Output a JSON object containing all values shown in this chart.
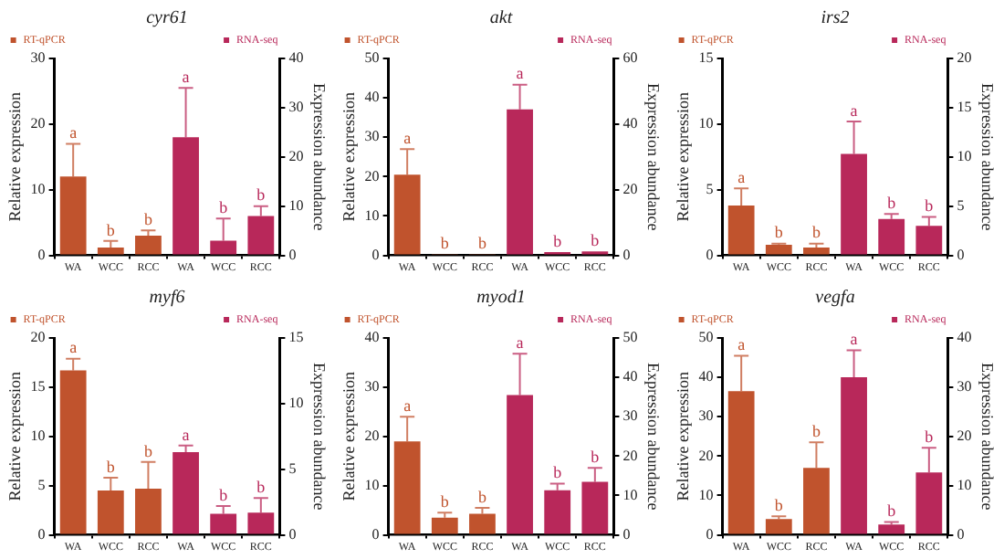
{
  "chart_data": [
    {
      "type": "bar",
      "title": "cyr61",
      "categories": [
        "WA",
        "WCC",
        "RCC",
        "WA",
        "WCC",
        "RCC"
      ],
      "ylabel": "Relative expression",
      "y2label": "Expression abundance",
      "ylim": [
        0,
        30
      ],
      "yticks": [
        0,
        10,
        20,
        30
      ],
      "y2lim": [
        0,
        40
      ],
      "y2ticks": [
        0,
        10,
        20,
        30,
        40
      ],
      "legend": "top",
      "series": [
        {
          "name": "RT-qPCR",
          "color": "#c0532d",
          "values": [
            12,
            1.2,
            3,
            null,
            null,
            null
          ],
          "errors": [
            [
              12,
              17
            ],
            [
              1.2,
              2.2
            ],
            [
              3,
              3.8
            ],
            null,
            null,
            null
          ],
          "value_labels": [
            "a",
            "b",
            "b",
            null,
            null,
            null
          ]
        },
        {
          "name": "RNA-seq",
          "color": "#b8285a",
          "axis": "y2",
          "values": [
            null,
            null,
            null,
            24,
            3,
            8
          ],
          "errors": [
            null,
            null,
            null,
            [
              24,
              34
            ],
            [
              3,
              7.5
            ],
            [
              8,
              10
            ]
          ],
          "value_labels": [
            null,
            null,
            null,
            "a",
            "b",
            "b"
          ]
        }
      ]
    },
    {
      "type": "bar",
      "title": "akt",
      "categories": [
        "WA",
        "WCC",
        "RCC",
        "WA",
        "WCC",
        "RCC"
      ],
      "ylabel": "Relative expression",
      "y2label": "Expression abundance",
      "ylim": [
        0,
        50
      ],
      "yticks": [
        0,
        10,
        20,
        30,
        40,
        50
      ],
      "y2lim": [
        0,
        60
      ],
      "y2ticks": [
        0,
        20,
        40,
        60
      ],
      "legend": "top",
      "series": [
        {
          "name": "RT-qPCR",
          "color": "#c0532d",
          "values": [
            20.5,
            0.2,
            0.3,
            null,
            null,
            null
          ],
          "errors": [
            [
              20.5,
              27
            ],
            null,
            null,
            null,
            null,
            null
          ],
          "value_labels": [
            "a",
            "b",
            "b",
            null,
            null,
            null
          ]
        },
        {
          "name": "RNA-seq",
          "color": "#b8285a",
          "axis": "y2",
          "values": [
            null,
            null,
            null,
            44.5,
            1,
            1.2
          ],
          "errors": [
            null,
            null,
            null,
            [
              44.5,
              52
            ],
            null,
            null
          ],
          "value_labels": [
            null,
            null,
            null,
            "a",
            "b",
            "b"
          ]
        }
      ]
    },
    {
      "type": "bar",
      "title": "irs2",
      "categories": [
        "WA",
        "WCC",
        "RCC",
        "WA",
        "WCC",
        "RCC"
      ],
      "ylabel": "Relative expression",
      "y2label": "Expression abundance",
      "ylim": [
        0,
        15
      ],
      "yticks": [
        0,
        5,
        10,
        15
      ],
      "y2lim": [
        0,
        20
      ],
      "y2ticks": [
        0,
        5,
        10,
        15,
        20
      ],
      "legend": "top",
      "series": [
        {
          "name": "RT-qPCR",
          "color": "#c0532d",
          "values": [
            3.8,
            0.8,
            0.6,
            null,
            null,
            null
          ],
          "errors": [
            [
              3.8,
              5.1
            ],
            [
              0.8,
              0.9
            ],
            [
              0.6,
              0.9
            ],
            null,
            null,
            null
          ],
          "value_labels": [
            "a",
            "b",
            "b",
            null,
            null,
            null
          ]
        },
        {
          "name": "RNA-seq",
          "color": "#b8285a",
          "axis": "y2",
          "values": [
            null,
            null,
            null,
            10.3,
            3.7,
            3
          ],
          "errors": [
            null,
            null,
            null,
            [
              10.3,
              13.6
            ],
            [
              3.7,
              4.2
            ],
            [
              3,
              3.9
            ]
          ],
          "value_labels": [
            null,
            null,
            null,
            "a",
            "b",
            "b"
          ]
        }
      ]
    },
    {
      "type": "bar",
      "title": "myf6",
      "categories": [
        "WA",
        "WCC",
        "RCC",
        "WA",
        "WCC",
        "RCC"
      ],
      "ylabel": "Relative expression",
      "y2label": "Expression abundance",
      "ylim": [
        0,
        20
      ],
      "yticks": [
        0,
        5,
        10,
        15,
        20
      ],
      "y2lim": [
        0,
        15
      ],
      "y2ticks": [
        0,
        5,
        10,
        15
      ],
      "legend": "top",
      "series": [
        {
          "name": "RT-qPCR",
          "color": "#c0532d",
          "values": [
            16.7,
            4.5,
            4.7,
            null,
            null,
            null
          ],
          "errors": [
            [
              16.7,
              17.9
            ],
            [
              4.5,
              5.8
            ],
            [
              4.7,
              7.4
            ],
            null,
            null,
            null
          ],
          "value_labels": [
            "a",
            "b",
            "b",
            null,
            null,
            null
          ]
        },
        {
          "name": "RNA-seq",
          "color": "#b8285a",
          "axis": "y2",
          "values": [
            null,
            null,
            null,
            6.3,
            1.6,
            1.7
          ],
          "errors": [
            null,
            null,
            null,
            [
              6.3,
              6.8
            ],
            [
              1.6,
              2.2
            ],
            [
              1.7,
              2.8
            ]
          ],
          "value_labels": [
            null,
            null,
            null,
            "a",
            "b",
            "b"
          ]
        }
      ]
    },
    {
      "type": "bar",
      "title": "myod1",
      "categories": [
        "WA",
        "WCC",
        "RCC",
        "WA",
        "WCC",
        "RCC"
      ],
      "ylabel": "Relative expression",
      "y2label": "Expression abundance",
      "ylim": [
        0,
        40
      ],
      "yticks": [
        0,
        10,
        20,
        30,
        40
      ],
      "y2lim": [
        0,
        50
      ],
      "y2ticks": [
        0,
        10,
        20,
        30,
        40,
        50
      ],
      "legend": "top",
      "series": [
        {
          "name": "RT-qPCR",
          "color": "#c0532d",
          "values": [
            19,
            3.5,
            4.3,
            null,
            null,
            null
          ],
          "errors": [
            [
              19,
              24
            ],
            [
              3.5,
              4.5
            ],
            [
              4.3,
              5.5
            ],
            null,
            null,
            null
          ],
          "value_labels": [
            "a",
            "b",
            "b",
            null,
            null,
            null
          ]
        },
        {
          "name": "RNA-seq",
          "color": "#b8285a",
          "axis": "y2",
          "values": [
            null,
            null,
            null,
            35.5,
            11.3,
            13.5
          ],
          "errors": [
            null,
            null,
            null,
            [
              35.5,
              46
            ],
            [
              11.3,
              13
            ],
            [
              13.5,
              17
            ]
          ],
          "value_labels": [
            null,
            null,
            null,
            "a",
            "b",
            "b"
          ]
        }
      ]
    },
    {
      "type": "bar",
      "title": "vegfa",
      "categories": [
        "WA",
        "WCC",
        "RCC",
        "WA",
        "WCC",
        "RCC"
      ],
      "ylabel": "Relative expression",
      "y2label": "Expression abundance",
      "ylim": [
        0,
        50
      ],
      "yticks": [
        0,
        10,
        20,
        30,
        40,
        50
      ],
      "y2lim": [
        0,
        40
      ],
      "y2ticks": [
        0,
        10,
        20,
        30,
        40
      ],
      "legend": "top",
      "series": [
        {
          "name": "RT-qPCR",
          "color": "#c0532d",
          "values": [
            36.5,
            4,
            17,
            null,
            null,
            null
          ],
          "errors": [
            [
              36.5,
              45.5
            ],
            [
              4,
              4.7
            ],
            [
              17,
              23.5
            ],
            null,
            null,
            null
          ],
          "value_labels": [
            "a",
            "b",
            "b",
            null,
            null,
            null
          ]
        },
        {
          "name": "RNA-seq",
          "color": "#b8285a",
          "axis": "y2",
          "values": [
            null,
            null,
            null,
            32,
            2.1,
            12.7
          ],
          "errors": [
            null,
            null,
            null,
            [
              32,
              37.5
            ],
            [
              2.1,
              2.6
            ],
            [
              12.7,
              17.7
            ]
          ],
          "value_labels": [
            null,
            null,
            null,
            "a",
            "b",
            "b"
          ]
        }
      ]
    }
  ]
}
